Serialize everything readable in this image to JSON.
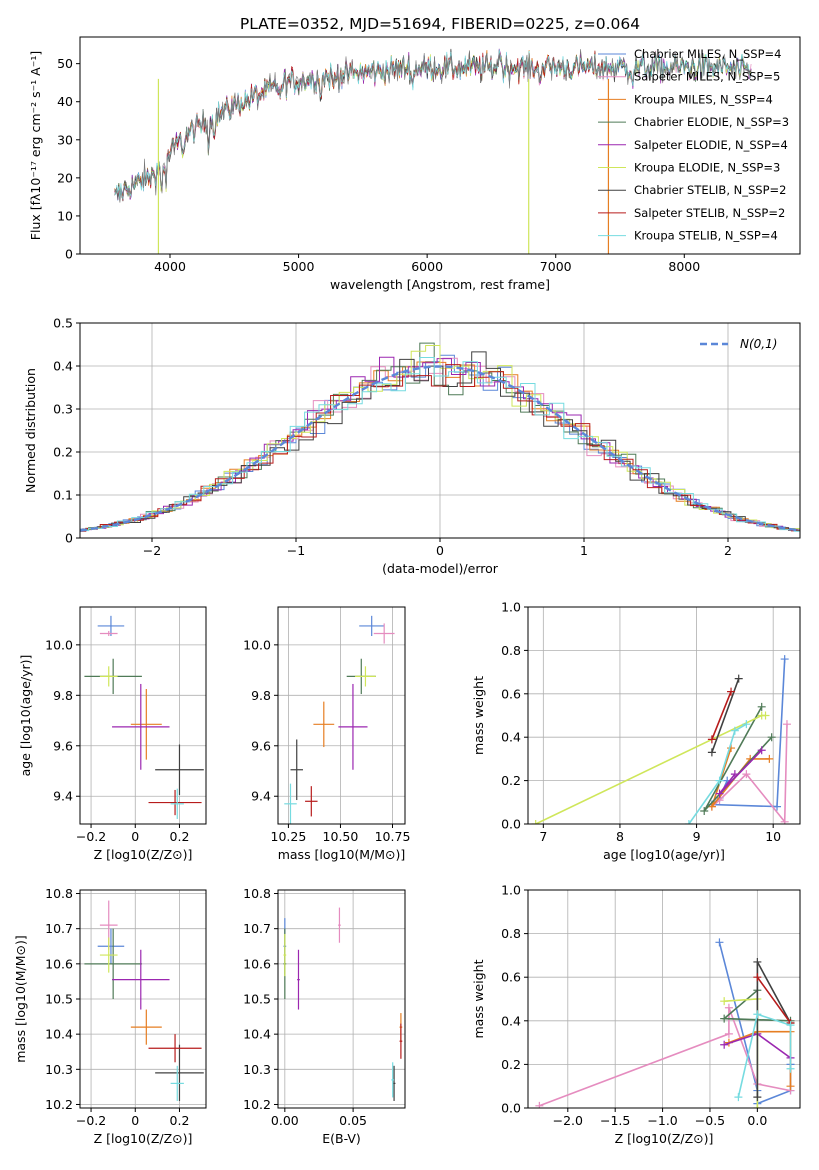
{
  "figure": {
    "title": "PLATE=0352, MJD=51694, FIBERID=0225, z=0.064"
  },
  "colors": {
    "chabrier_miles": "#5b87d8",
    "salpeter_miles": "#e58cbf",
    "kroupa_miles": "#e67e22",
    "chabrier_elodie": "#4f7a57",
    "salpeter_elodie": "#9b27b0",
    "kroupa_elodie": "#cfe65a",
    "chabrier_stelib": "#404040",
    "salpeter_stelib": "#b71c1c",
    "kroupa_stelib": "#76dbe0"
  },
  "chart_data": [
    {
      "id": "spectrum",
      "type": "line",
      "xlabel": "wavelength [Angstrom, rest frame]",
      "ylabel": "Flux [fλ10⁻¹⁷ erg cm⁻² s⁻¹ A⁻¹]",
      "xlim": [
        3300,
        8900
      ],
      "ylim": [
        0,
        57
      ],
      "xticks": [
        4000,
        5000,
        6000,
        7000,
        8000
      ],
      "yticks": [
        0,
        10,
        20,
        30,
        40,
        50
      ],
      "legend_position": "top-right",
      "legend": [
        "Chabrier MILES, N_SSP=4",
        "Salpeter MILES, N_SSP=5",
        "Kroupa MILES, N_SSP=4",
        "Chabrier ELODIE, N_SSP=3",
        "Salpeter ELODIE, N_SSP=4",
        "Kroupa ELODIE, N_SSP=3",
        "Chabrier STELIB, N_SSP=2",
        "Salpeter STELIB, N_SSP=2",
        "Kroupa STELIB, N_SSP=4"
      ],
      "continuum": {
        "x": [
          3570,
          3700,
          3850,
          3950,
          4050,
          4200,
          4350,
          4500,
          4700,
          4900,
          5100,
          5300,
          5600,
          5900,
          6200,
          6600,
          7000,
          7400,
          7800,
          8300,
          8500
        ],
        "y": [
          15,
          18,
          20,
          24,
          29,
          33,
          36,
          39,
          42,
          45,
          46,
          47,
          48,
          49,
          49,
          49,
          49,
          49,
          49,
          49,
          48
        ]
      }
    },
    {
      "id": "residuals",
      "type": "line",
      "xlabel": "(data-model)/error",
      "ylabel": "Normed distribution",
      "xlim": [
        -2.5,
        2.5
      ],
      "ylim": [
        0,
        0.5
      ],
      "xticks": [
        -2,
        -1,
        0,
        1,
        2
      ],
      "yticks": [
        0.0,
        0.1,
        0.2,
        0.3,
        0.4,
        0.5
      ],
      "legend": [
        "N(0,1)"
      ],
      "legend_position": "top-right",
      "grid": true
    },
    {
      "id": "age_vs_Z",
      "type": "scatter",
      "xlabel": "Z [log10(Z/Z⊙)]",
      "ylabel": "age [log10(age/yr)]",
      "xlim": [
        -0.25,
        0.32
      ],
      "ylim": [
        9.29,
        10.15
      ],
      "xticks": [
        -0.2,
        0.0,
        0.2
      ],
      "yticks": [
        9.4,
        9.6,
        9.8,
        10.0
      ],
      "grid": true,
      "points": [
        {
          "series": "chabrier_miles",
          "x": -0.11,
          "y": 10.075,
          "xerr": 0.06,
          "yerr": 0.04
        },
        {
          "series": "salpeter_miles",
          "x": -0.12,
          "y": 10.045,
          "xerr": 0.04,
          "yerr": 0.01
        },
        {
          "series": "kroupa_miles",
          "x": 0.05,
          "y": 9.685,
          "xerr": 0.07,
          "yerr": 0.14
        },
        {
          "series": "chabrier_elodie",
          "x": -0.1,
          "y": 9.875,
          "xerr": 0.13,
          "yerr": 0.07
        },
        {
          "series": "salpeter_elodie",
          "x": 0.025,
          "y": 9.675,
          "xerr": 0.13,
          "yerr": 0.17
        },
        {
          "series": "kroupa_elodie",
          "x": -0.12,
          "y": 9.875,
          "xerr": 0.04,
          "yerr": 0.04
        },
        {
          "series": "chabrier_stelib",
          "x": 0.2,
          "y": 9.505,
          "xerr": 0.11,
          "yerr": 0.1
        },
        {
          "series": "salpeter_stelib",
          "x": 0.18,
          "y": 9.375,
          "xerr": 0.12,
          "yerr": 0.05
        },
        {
          "series": "kroupa_stelib",
          "x": 0.19,
          "y": 9.37,
          "xerr": 0.03,
          "yerr": 0.06
        }
      ]
    },
    {
      "id": "age_vs_mass",
      "type": "scatter",
      "xlabel": "mass [log10(M/M⊙)]",
      "ylabel": "",
      "xlim": [
        10.2,
        10.81
      ],
      "ylim": [
        9.29,
        10.15
      ],
      "xticks": [
        10.25,
        10.5,
        10.75
      ],
      "yticks": [
        9.4,
        9.6,
        9.8,
        10.0
      ],
      "grid": true,
      "points": [
        {
          "series": "chabrier_miles",
          "x": 10.65,
          "y": 10.075,
          "xerr": 0.06,
          "yerr": 0.04
        },
        {
          "series": "salpeter_miles",
          "x": 10.71,
          "y": 10.045,
          "xerr": 0.05,
          "yerr": 0.04
        },
        {
          "series": "kroupa_miles",
          "x": 10.42,
          "y": 9.685,
          "xerr": 0.05,
          "yerr": 0.09
        },
        {
          "series": "chabrier_elodie",
          "x": 10.6,
          "y": 9.875,
          "xerr": 0.07,
          "yerr": 0.07
        },
        {
          "series": "salpeter_elodie",
          "x": 10.56,
          "y": 9.675,
          "xerr": 0.07,
          "yerr": 0.17
        },
        {
          "series": "kroupa_elodie",
          "x": 10.62,
          "y": 9.875,
          "xerr": 0.05,
          "yerr": 0.04
        },
        {
          "series": "chabrier_stelib",
          "x": 10.29,
          "y": 9.505,
          "xerr": 0.03,
          "yerr": 0.12
        },
        {
          "series": "salpeter_stelib",
          "x": 10.36,
          "y": 9.38,
          "xerr": 0.03,
          "yerr": 0.06
        },
        {
          "series": "kroupa_stelib",
          "x": 10.26,
          "y": 9.37,
          "xerr": 0.03,
          "yerr": 0.08
        }
      ]
    },
    {
      "id": "weight_vs_age",
      "type": "line",
      "xlabel": "age [log10(age/yr)]",
      "ylabel": "mass weight",
      "xlim": [
        6.8,
        10.35
      ],
      "ylim": [
        0,
        1.0
      ],
      "xticks": [
        7,
        8,
        9,
        10
      ],
      "yticks": [
        0.0,
        0.2,
        0.4,
        0.6,
        0.8,
        1.0
      ],
      "grid": true,
      "series": [
        {
          "key": "chabrier_miles",
          "x": [
            10.15,
            10.05,
            9.2,
            9.3,
            9.4
          ],
          "y": [
            0.76,
            0.08,
            0.09,
            0.12,
            0.2
          ]
        },
        {
          "key": "salpeter_miles",
          "x": [
            10.18,
            10.15,
            9.65,
            9.3,
            9.2
          ],
          "y": [
            0.46,
            0.01,
            0.23,
            0.11,
            0.08
          ]
        },
        {
          "key": "kroupa_miles",
          "x": [
            9.45,
            9.2,
            9.7,
            9.95
          ],
          "y": [
            0.35,
            0.08,
            0.3,
            0.3
          ]
        },
        {
          "key": "chabrier_elodie",
          "x": [
            9.85,
            9.1,
            9.98
          ],
          "y": [
            0.54,
            0.06,
            0.4
          ]
        },
        {
          "key": "salpeter_elodie",
          "x": [
            9.85,
            9.3,
            9.5
          ],
          "y": [
            0.34,
            0.14,
            0.23
          ]
        },
        {
          "key": "kroupa_elodie",
          "x": [
            6.9,
            9.85,
            9.9
          ],
          "y": [
            0.0,
            0.5,
            0.5
          ]
        },
        {
          "key": "chabrier_stelib",
          "x": [
            9.2,
            9.55
          ],
          "y": [
            0.33,
            0.67
          ]
        },
        {
          "key": "salpeter_stelib",
          "x": [
            9.2,
            9.45
          ],
          "y": [
            0.39,
            0.61
          ]
        },
        {
          "key": "kroupa_stelib",
          "x": [
            8.9,
            9.3,
            9.5,
            9.65
          ],
          "y": [
            0.0,
            0.2,
            0.43,
            0.46
          ]
        }
      ]
    },
    {
      "id": "mass_vs_Z",
      "type": "scatter",
      "xlabel": "Z [log10(Z/Z⊙)]",
      "ylabel": "mass [log10(M/M⊙)]",
      "xlim": [
        -0.25,
        0.32
      ],
      "ylim": [
        10.19,
        10.81
      ],
      "xticks": [
        -0.2,
        0.0,
        0.2
      ],
      "yticks": [
        10.2,
        10.3,
        10.4,
        10.5,
        10.6,
        10.7,
        10.8
      ],
      "grid": true,
      "points": [
        {
          "series": "chabrier_miles",
          "x": -0.11,
          "y": 10.65,
          "xerr": 0.06,
          "yerr": 0.05
        },
        {
          "series": "salpeter_miles",
          "x": -0.12,
          "y": 10.71,
          "xerr": 0.04,
          "yerr": 0.07
        },
        {
          "series": "kroupa_miles",
          "x": 0.05,
          "y": 10.42,
          "xerr": 0.07,
          "yerr": 0.05
        },
        {
          "series": "chabrier_elodie",
          "x": -0.1,
          "y": 10.6,
          "xerr": 0.13,
          "yerr": 0.1
        },
        {
          "series": "salpeter_elodie",
          "x": 0.025,
          "y": 10.555,
          "xerr": 0.13,
          "yerr": 0.085
        },
        {
          "series": "kroupa_elodie",
          "x": -0.12,
          "y": 10.625,
          "xerr": 0.04,
          "yerr": 0.05
        },
        {
          "series": "chabrier_stelib",
          "x": 0.2,
          "y": 10.29,
          "xerr": 0.11,
          "yerr": 0.08
        },
        {
          "series": "salpeter_stelib",
          "x": 0.18,
          "y": 10.36,
          "xerr": 0.12,
          "yerr": 0.04
        },
        {
          "series": "kroupa_stelib",
          "x": 0.19,
          "y": 10.26,
          "xerr": 0.03,
          "yerr": 0.05
        }
      ]
    },
    {
      "id": "mass_vs_ebv",
      "type": "scatter",
      "xlabel": "E(B-V)",
      "ylabel": "",
      "xlim": [
        -0.005,
        0.088
      ],
      "ylim": [
        10.19,
        10.81
      ],
      "xticks": [
        0.0,
        0.05
      ],
      "yticks": [
        10.2,
        10.3,
        10.4,
        10.5,
        10.6,
        10.7,
        10.8
      ],
      "grid": true,
      "points": [
        {
          "series": "chabrier_miles",
          "x": 0.0,
          "y": 10.65,
          "xerr": 0.001,
          "yerr": 0.08
        },
        {
          "series": "salpeter_miles",
          "x": 0.04,
          "y": 10.71,
          "xerr": 0.001,
          "yerr": 0.05
        },
        {
          "series": "kroupa_miles",
          "x": 0.085,
          "y": 10.42,
          "xerr": 0.001,
          "yerr": 0.04
        },
        {
          "series": "chabrier_elodie",
          "x": 0.0,
          "y": 10.6,
          "xerr": 0.001,
          "yerr": 0.1
        },
        {
          "series": "salpeter_elodie",
          "x": 0.01,
          "y": 10.555,
          "xerr": 0.001,
          "yerr": 0.085
        },
        {
          "series": "kroupa_elodie",
          "x": 0.0,
          "y": 10.625,
          "xerr": 0.001,
          "yerr": 0.06
        },
        {
          "series": "chabrier_stelib",
          "x": 0.08,
          "y": 10.26,
          "xerr": 0.001,
          "yerr": 0.05
        },
        {
          "series": "salpeter_stelib",
          "x": 0.085,
          "y": 10.38,
          "xerr": 0.001,
          "yerr": 0.05
        },
        {
          "series": "kroupa_stelib",
          "x": 0.079,
          "y": 10.27,
          "xerr": 0.001,
          "yerr": 0.05
        }
      ]
    },
    {
      "id": "weight_vs_Z",
      "type": "line",
      "xlabel": "Z [log10(Z/Z⊙)]",
      "ylabel": "mass weight",
      "xlim": [
        -2.42,
        0.45
      ],
      "ylim": [
        0,
        1.0
      ],
      "xticks": [
        -2.0,
        -1.5,
        -1.0,
        -0.5,
        0.0
      ],
      "yticks": [
        0.0,
        0.2,
        0.4,
        0.6,
        0.8,
        1.0
      ],
      "grid": true,
      "series": [
        {
          "key": "chabrier_miles",
          "x": [
            -0.4,
            0.0,
            0.0,
            0.35,
            0.35
          ],
          "y": [
            0.76,
            0.08,
            0.02,
            0.08,
            0.2
          ]
        },
        {
          "key": "salpeter_miles",
          "x": [
            -2.3,
            -0.3,
            -0.3,
            0.0,
            0.35
          ],
          "y": [
            0.01,
            0.34,
            0.46,
            0.11,
            0.08
          ]
        },
        {
          "key": "kroupa_miles",
          "x": [
            -0.3,
            0.0,
            0.35,
            0.35
          ],
          "y": [
            0.3,
            0.35,
            0.35,
            0.1
          ]
        },
        {
          "key": "chabrier_elodie",
          "x": [
            0.0,
            -0.35,
            0.35
          ],
          "y": [
            0.54,
            0.41,
            0.4
          ]
        },
        {
          "key": "salpeter_elodie",
          "x": [
            -0.35,
            0.0,
            0.35
          ],
          "y": [
            0.29,
            0.34,
            0.23
          ]
        },
        {
          "key": "kroupa_elodie",
          "x": [
            -0.35,
            0.0,
            0.0
          ],
          "y": [
            0.49,
            0.5,
            0.0
          ]
        },
        {
          "key": "chabrier_stelib",
          "x": [
            0.0,
            0.0,
            0.35
          ],
          "y": [
            0.05,
            0.67,
            0.39
          ]
        },
        {
          "key": "salpeter_stelib",
          "x": [
            0.0,
            0.35
          ],
          "y": [
            0.6,
            0.39
          ]
        },
        {
          "key": "kroupa_stelib",
          "x": [
            -0.2,
            0.0,
            0.35,
            0.35
          ],
          "y": [
            0.05,
            0.43,
            0.38,
            0.18
          ]
        }
      ]
    }
  ]
}
